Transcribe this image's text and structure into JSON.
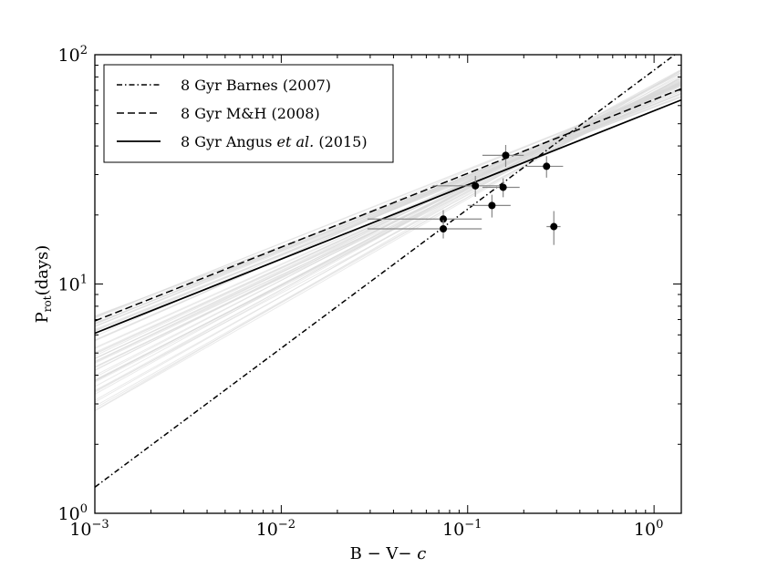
{
  "chart_data": {
    "type": "scatter",
    "xscale": "log",
    "yscale": "log",
    "xlim": [
      0.001,
      1.4
    ],
    "ylim": [
      1,
      100
    ],
    "xlabel": {
      "main": "B − V− ",
      "italic": "c"
    },
    "ylabel": {
      "main": "P",
      "sub": "rot",
      "tail": "(days)"
    },
    "x_ticks": [
      {
        "value": 0.001,
        "base": "10",
        "exp": "−3"
      },
      {
        "value": 0.01,
        "base": "10",
        "exp": "−2"
      },
      {
        "value": 0.1,
        "base": "10",
        "exp": "−1"
      },
      {
        "value": 1,
        "base": "10",
        "exp": "0"
      }
    ],
    "y_ticks": [
      {
        "value": 1,
        "base": "10",
        "exp": "0"
      },
      {
        "value": 10,
        "base": "10",
        "exp": "1"
      },
      {
        "value": 100,
        "base": "10",
        "exp": "2"
      }
    ],
    "series": [
      {
        "name": "8 Gyr Barnes (2007)",
        "label_parts": [
          "8 Gyr Barnes (2007)"
        ],
        "style": "dashdot",
        "color": "#000000",
        "line": [
          [
            0.001,
            1.3
          ],
          [
            1.4,
            105
          ]
        ]
      },
      {
        "name": "8 Gyr M&H (2008)",
        "label_parts": [
          "8 Gyr M&H (2008)"
        ],
        "style": "dashed",
        "color": "#000000",
        "line": [
          [
            0.001,
            6.9
          ],
          [
            1.4,
            71
          ]
        ]
      },
      {
        "name": "8 Gyr Angus et al. (2015)",
        "label_parts": [
          "8 Gyr Angus ",
          "et al.",
          " (2015)"
        ],
        "style": "solid",
        "color": "#000000",
        "line": [
          [
            0.001,
            6.1
          ],
          [
            1.4,
            63.5
          ]
        ]
      }
    ],
    "posterior_samples": {
      "color": "#d9d9d9",
      "count": 60,
      "anchor_x": 0.4,
      "anchor_y_range": [
        44,
        50
      ],
      "left_y_range": [
        2.7,
        7.3
      ]
    },
    "points": [
      {
        "x": 0.074,
        "y": 19.2,
        "xerr": [
          0.045,
          0.045
        ],
        "yerr": [
          1.8,
          1.8
        ]
      },
      {
        "x": 0.074,
        "y": 17.4,
        "xerr": [
          0.045,
          0.045
        ],
        "yerr": [
          1.6,
          1.6
        ]
      },
      {
        "x": 0.11,
        "y": 26.8,
        "xerr": [
          0.045,
          0.045
        ],
        "yerr": [
          2.8,
          2.8
        ]
      },
      {
        "x": 0.135,
        "y": 22.0,
        "xerr": [
          0.035,
          0.035
        ],
        "yerr": [
          2.5,
          2.5
        ]
      },
      {
        "x": 0.155,
        "y": 26.4,
        "xerr": [
          0.035,
          0.035
        ],
        "yerr": [
          2.5,
          2.5
        ]
      },
      {
        "x": 0.16,
        "y": 36.4,
        "xerr": [
          0.04,
          0.04
        ],
        "yerr": [
          4.0,
          4.0
        ]
      },
      {
        "x": 0.265,
        "y": 32.6,
        "xerr": [
          0.06,
          0.06
        ],
        "yerr": [
          3.5,
          3.5
        ]
      },
      {
        "x": 0.29,
        "y": 17.8,
        "xerr": [
          0.025,
          0.025
        ],
        "yerr": [
          3.0,
          3.0
        ]
      }
    ],
    "legend": {
      "position": "top-left"
    }
  }
}
